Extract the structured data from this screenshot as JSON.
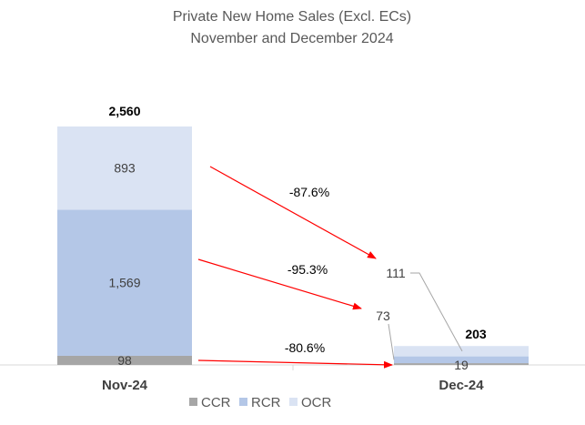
{
  "chart_data": {
    "type": "bar",
    "stacked": true,
    "title": "Private New Home Sales (Excl. ECs)",
    "subtitle": "November and December 2024",
    "categories": [
      "Nov-24",
      "Dec-24"
    ],
    "series": [
      {
        "name": "CCR",
        "values": [
          98,
          19
        ],
        "labels": [
          "98",
          "19"
        ],
        "color": "#a6a6a6"
      },
      {
        "name": "RCR",
        "values": [
          1569,
          73
        ],
        "labels": [
          "1,569",
          "73"
        ],
        "color": "#b4c7e7"
      },
      {
        "name": "OCR",
        "values": [
          893,
          111
        ],
        "labels": [
          "893",
          "111"
        ],
        "color": "#dae3f3"
      }
    ],
    "totals": [
      2560,
      203
    ],
    "total_labels": [
      "2,560",
      "203"
    ],
    "changes": [
      {
        "series": "OCR",
        "label": "-87.6%"
      },
      {
        "series": "RCR",
        "label": "-95.3%"
      },
      {
        "series": "CCR",
        "label": "-80.6%"
      }
    ],
    "arrow_color": "#ff0000",
    "legend_position": "bottom",
    "grid": false,
    "ylim": [
      0,
      2560
    ]
  }
}
